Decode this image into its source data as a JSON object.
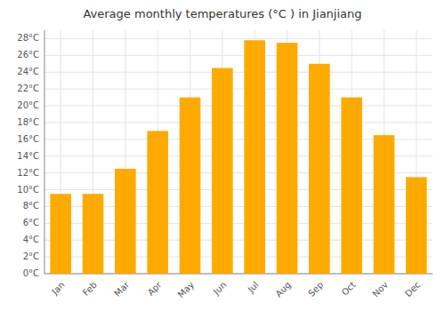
{
  "chart_data": {
    "type": "bar",
    "title": "Average monthly temperatures (°C ) in Jianjiang",
    "categories": [
      "Jan",
      "Feb",
      "Mar",
      "Apr",
      "May",
      "Jun",
      "Jul",
      "Aug",
      "Sep",
      "Oct",
      "Nov",
      "Dec"
    ],
    "values": [
      9.5,
      9.5,
      12.5,
      17.0,
      21.0,
      24.5,
      27.8,
      27.5,
      25.0,
      21.0,
      16.5,
      11.5
    ],
    "color": "#FFAA00",
    "ylim": [
      0,
      29
    ],
    "yticks": [
      {
        "value": 0,
        "label": "0°C"
      },
      {
        "value": 2,
        "label": "2°C"
      },
      {
        "value": 4,
        "label": "4°C"
      },
      {
        "value": 6,
        "label": "6°C"
      },
      {
        "value": 8,
        "label": "8°C"
      },
      {
        "value": 10,
        "label": "10°C"
      },
      {
        "value": 12,
        "label": "12°C"
      },
      {
        "value": 14,
        "label": "14°C"
      },
      {
        "value": 16,
        "label": "16°C"
      },
      {
        "value": 18,
        "label": "18°C"
      },
      {
        "value": 20,
        "label": "20°C"
      },
      {
        "value": 22,
        "label": "22°C"
      },
      {
        "value": 24,
        "label": "24°C"
      },
      {
        "value": 26,
        "label": "26°C"
      },
      {
        "value": 28,
        "label": "28°C"
      }
    ],
    "grid": true
  }
}
